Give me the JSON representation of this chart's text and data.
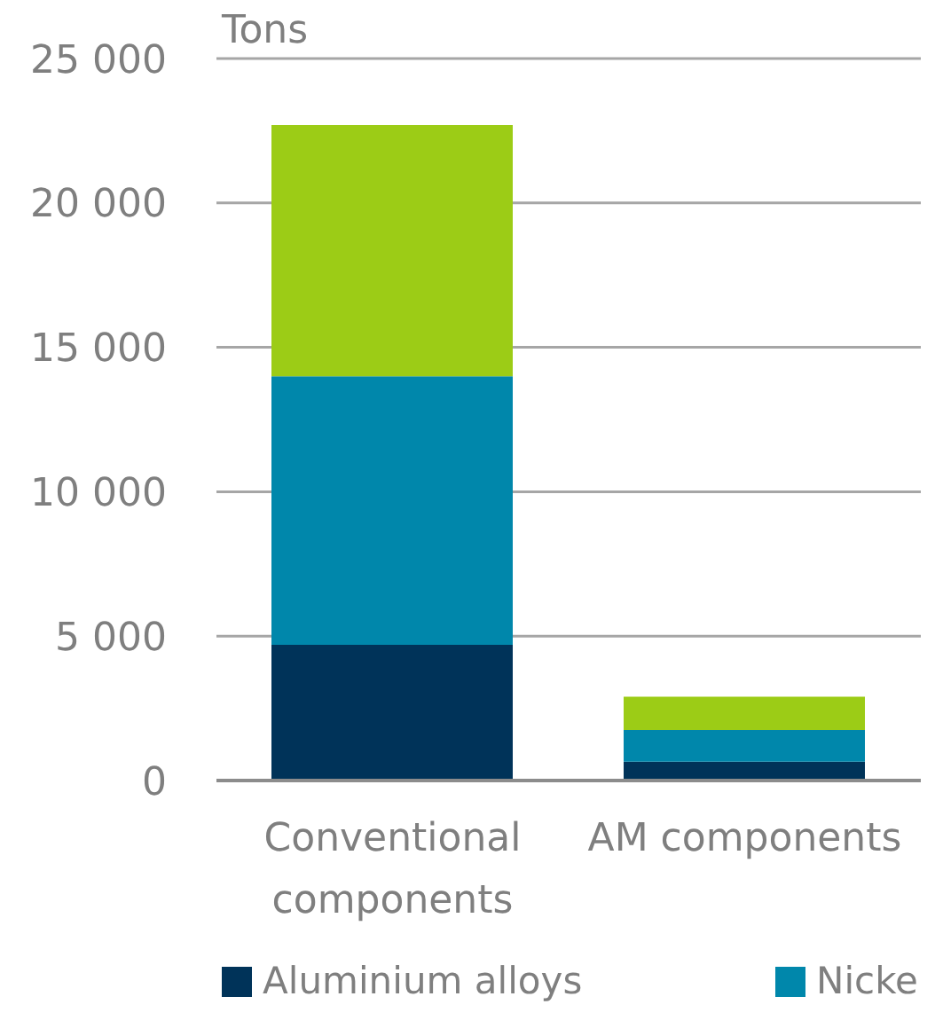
{
  "chart_data": {
    "type": "bar",
    "ylabel": "Tons",
    "categories": [
      "Conventional components",
      "AM components"
    ],
    "series": [
      {
        "name": "Aluminium alloys",
        "color": "#003359",
        "values": [
          4700,
          650
        ]
      },
      {
        "name": "Nicke",
        "color": "#0087ab",
        "values": [
          9300,
          1100
        ]
      },
      {
        "color": "#9ccc16",
        "values": [
          8700,
          1150
        ]
      }
    ],
    "stacked": true,
    "ylim": [
      0,
      25000
    ],
    "yticks": [
      0,
      {
        "value": 5000,
        "label": "5 000"
      },
      {
        "value": 10000,
        "label": "10 000"
      },
      {
        "value": 15000,
        "label": "15 000"
      },
      {
        "value": 20000,
        "label": "20 000"
      },
      {
        "value": 25000,
        "label": "25 000"
      }
    ],
    "grid": "y",
    "legend": "bottom"
  }
}
